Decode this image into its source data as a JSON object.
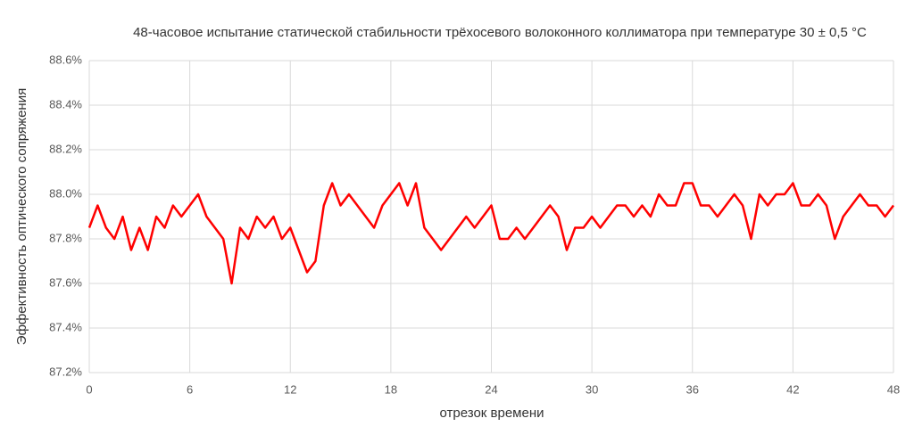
{
  "chart_data": {
    "type": "line",
    "title": "48-часовое испытание статической стабильности трёхосевого волоконного коллиматора при температуре 30 ± 0,5 °C",
    "x_label": "отрезок времени",
    "y_label": "Эффективность оптического сопряжения",
    "x": [
      0,
      0.5,
      1,
      1.5,
      2,
      2.5,
      3,
      3.5,
      4,
      4.5,
      5,
      5.5,
      6,
      6.5,
      7,
      7.5,
      8,
      8.5,
      9,
      9.5,
      10,
      10.5,
      11,
      11.5,
      12,
      12.5,
      13,
      13.5,
      14,
      14.5,
      15,
      15.5,
      16,
      16.5,
      17,
      17.5,
      18,
      18.5,
      19,
      19.5,
      20,
      20.5,
      21,
      21.5,
      22,
      22.5,
      23,
      23.5,
      24,
      24.5,
      25,
      25.5,
      26,
      26.5,
      27,
      27.5,
      28,
      28.5,
      29,
      29.5,
      30,
      30.5,
      31,
      31.5,
      32,
      32.5,
      33,
      33.5,
      34,
      34.5,
      35,
      35.5,
      36,
      36.5,
      37,
      37.5,
      38,
      38.5,
      39,
      39.5,
      40,
      40.5,
      41,
      41.5,
      42,
      42.5,
      43,
      43.5,
      44,
      44.5,
      45,
      45.5,
      46,
      46.5,
      47,
      47.5,
      48
    ],
    "series": [
      {
        "name": "Эффективность оптического сопряжения",
        "color": "#ff0000",
        "values": [
          87.85,
          87.95,
          87.85,
          87.8,
          87.9,
          87.75,
          87.85,
          87.75,
          87.9,
          87.85,
          87.95,
          87.9,
          87.95,
          88.0,
          87.9,
          87.85,
          87.8,
          87.6,
          87.85,
          87.8,
          87.9,
          87.85,
          87.9,
          87.8,
          87.85,
          87.75,
          87.65,
          87.7,
          87.95,
          88.05,
          87.95,
          88.0,
          87.95,
          87.9,
          87.85,
          87.95,
          88.0,
          88.05,
          87.95,
          88.05,
          87.85,
          87.8,
          87.75,
          87.8,
          87.85,
          87.9,
          87.85,
          87.9,
          87.95,
          87.8,
          87.8,
          87.85,
          87.8,
          87.85,
          87.9,
          87.95,
          87.9,
          87.75,
          87.85,
          87.85,
          87.9,
          87.85,
          87.9,
          87.95,
          87.95,
          87.9,
          87.95,
          87.9,
          88.0,
          87.95,
          87.95,
          88.05,
          88.05,
          87.95,
          87.95,
          87.9,
          87.95,
          88.0,
          87.95,
          87.8,
          88.0,
          87.95,
          88.0,
          88.0,
          88.05,
          87.95,
          87.95,
          88.0,
          87.95,
          87.8,
          87.9,
          87.95,
          88.0,
          87.95,
          87.95,
          87.9,
          87.95
        ]
      }
    ],
    "xlim": [
      0,
      48
    ],
    "xticks": [
      0,
      6,
      12,
      18,
      24,
      30,
      36,
      42,
      48
    ],
    "ylim": [
      87.2,
      88.6
    ],
    "yticks": [
      {
        "value": 87.2,
        "label": "87.2%"
      },
      {
        "value": 87.4,
        "label": "87.4%"
      },
      {
        "value": 87.6,
        "label": "87.6%"
      },
      {
        "value": 87.8,
        "label": "87.8%"
      },
      {
        "value": 88.0,
        "label": "88.0%"
      },
      {
        "value": 88.2,
        "label": "88.2%"
      },
      {
        "value": 88.4,
        "label": "88.4%"
      },
      {
        "value": 88.6,
        "label": "88.6%"
      }
    ],
    "grid": true
  }
}
